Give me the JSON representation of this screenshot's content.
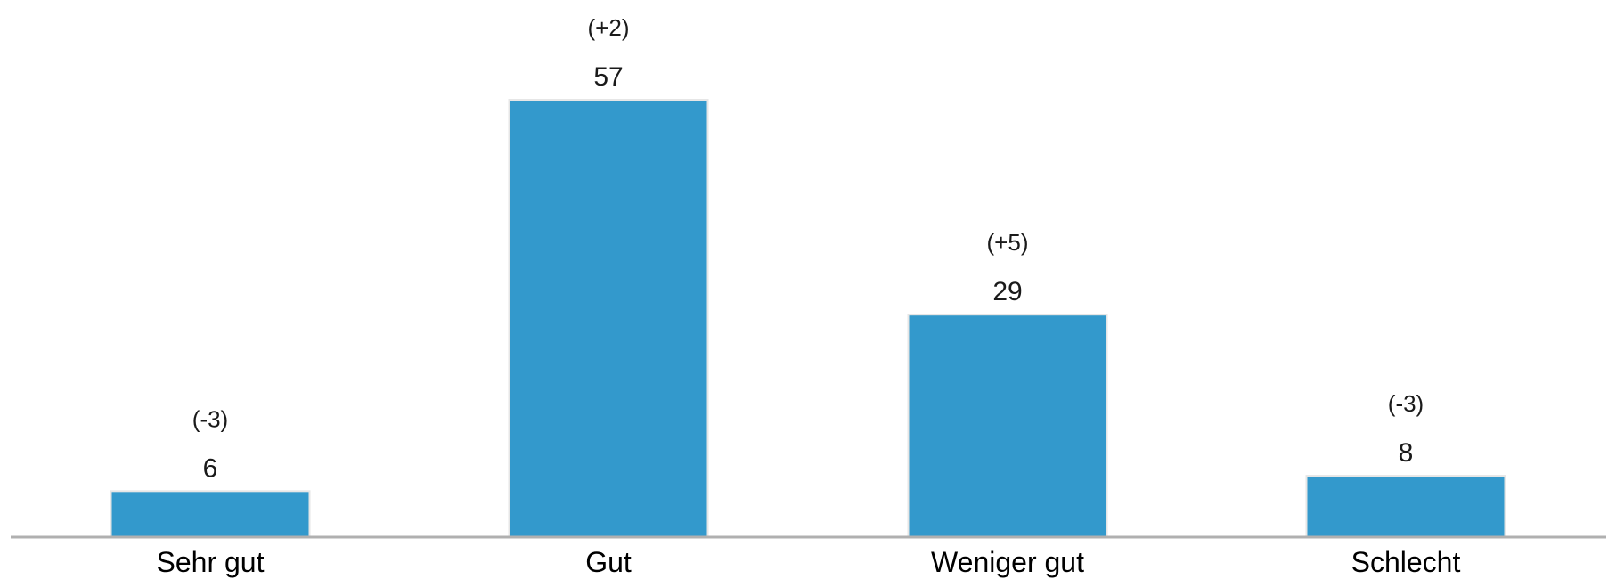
{
  "chart_data": {
    "type": "bar",
    "categories": [
      "Sehr gut",
      "Gut",
      "Weniger gut",
      "Schlecht"
    ],
    "values": [
      6,
      57,
      29,
      8
    ],
    "changes": [
      "(-3)",
      "(+2)",
      "(+5)",
      "(-3)"
    ],
    "ylim": [
      0,
      57
    ],
    "grid": false,
    "legend": "none",
    "bar_color": "#3399cc",
    "axis_color": "#b0b0b0"
  }
}
